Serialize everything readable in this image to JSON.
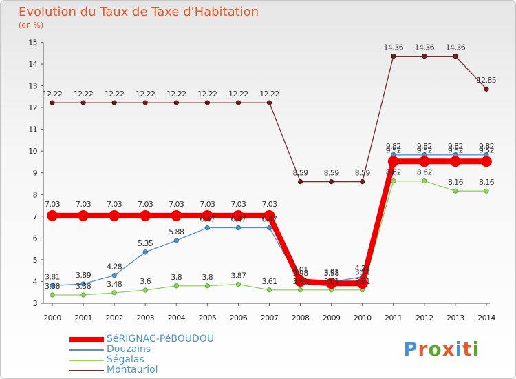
{
  "title": "Evolution du Taux de Taxe d'Habitation",
  "subtitle": "(en %)",
  "brand": "Proxiti",
  "colors": {
    "title": "#e8562a",
    "brand_letters": [
      "#4a8fd9",
      "#e8562a",
      "#5aaa2a",
      "#e8562a",
      "#4a8fd9",
      "#e8562a",
      "#5aaa2a"
    ]
  },
  "chart_data": {
    "type": "line",
    "title": "Evolution du Taux de Taxe d'Habitation",
    "ylabel": "(en %)",
    "x": [
      "2000",
      "2001",
      "2002",
      "2003",
      "2004",
      "2005",
      "2006",
      "2007",
      "2008",
      "2009",
      "2010",
      "2011",
      "2012",
      "2013",
      "2014"
    ],
    "ylim": [
      3,
      15
    ],
    "yticks": [
      "3",
      "4",
      "5",
      "6",
      "7",
      "8",
      "9",
      "10",
      "11",
      "12",
      "13",
      "14",
      "15"
    ],
    "grid": false,
    "legend_position": "bottom-left",
    "series": [
      {
        "name": "SéRIGNAC-PéBOUDOU",
        "color": "#ee0000",
        "values": [
          7.03,
          7.03,
          7.03,
          7.03,
          7.03,
          7.03,
          7.03,
          7.03,
          4.01,
          3.91,
          3.91,
          9.52,
          9.52,
          9.52,
          9.52
        ],
        "labels": [
          "7.03",
          "7.03",
          "7.03",
          "7.03",
          "7.03",
          "7.03",
          "7.03",
          "7.03",
          "4.01",
          "3.91",
          "3.91",
          "9.52",
          "9.52",
          "9.52",
          "9.52"
        ]
      },
      {
        "name": "Douzains",
        "color": "#4f93c9",
        "values": [
          3.81,
          3.89,
          4.28,
          5.35,
          5.88,
          6.47,
          6.47,
          6.47,
          3.98,
          3.98,
          4.21,
          9.82,
          9.82,
          9.82,
          9.82
        ],
        "labels": [
          "3.81",
          "3.89",
          "4.28",
          "5.35",
          "5.88",
          "6.47",
          "6.47",
          "6.47",
          "3.98",
          "3.98",
          "4.21",
          "9.82",
          "9.82",
          "9.82",
          "9.82"
        ]
      },
      {
        "name": "Ségalas",
        "color": "#8fd45c",
        "values": [
          3.38,
          3.38,
          3.48,
          3.6,
          3.8,
          3.8,
          3.87,
          3.61,
          3.61,
          3.61,
          3.61,
          8.62,
          8.62,
          8.16,
          8.16
        ],
        "labels": [
          "3.38",
          "3.38",
          "3.48",
          "3.6",
          "3.8",
          "3.8",
          "3.87",
          "3.61",
          "3.61",
          "3.61",
          "3.61",
          "8.62",
          "8.62",
          "8.16",
          "8.16"
        ]
      },
      {
        "name": "Montauriol",
        "color": "#7a2a2a",
        "values": [
          12.22,
          12.22,
          12.22,
          12.22,
          12.22,
          12.22,
          12.22,
          12.22,
          8.59,
          8.59,
          8.59,
          14.36,
          14.36,
          14.36,
          12.85
        ],
        "labels": [
          "12.22",
          "12.22",
          "12.22",
          "12.22",
          "12.22",
          "12.22",
          "12.22",
          "12.22",
          "8.59",
          "8.59",
          "8.59",
          "14.36",
          "14.36",
          "14.36",
          "12.85"
        ]
      }
    ]
  }
}
